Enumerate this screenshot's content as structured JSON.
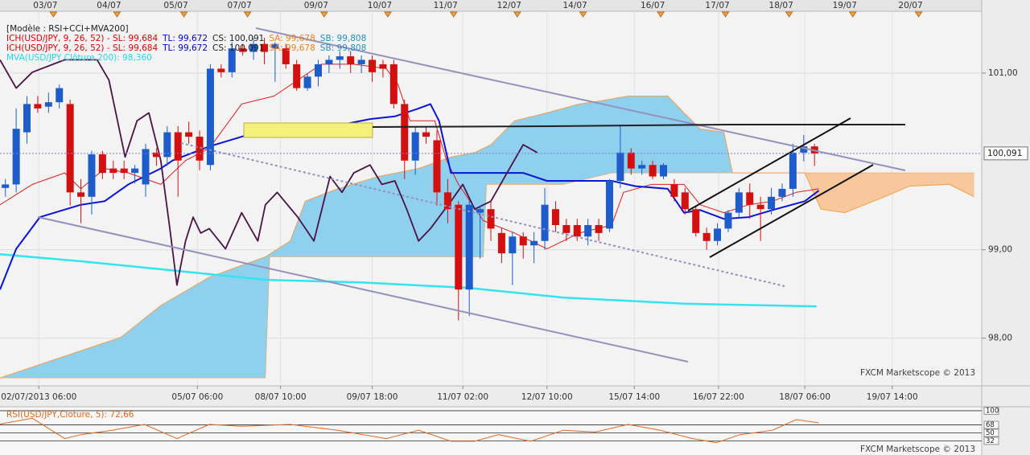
{
  "chart_data": {
    "type": "candlestick",
    "legend_lines": [
      [
        {
          "text": "[Modèle : RSI+CCI+MVA200]",
          "color": "#202020"
        }
      ],
      [
        {
          "text": "ICH(USD/JPY, 9, 26, 52) -  SL: 99,684",
          "color": "#e00000"
        },
        {
          "text": "TL: 99,672",
          "color": "#0000d0"
        },
        {
          "text": "CS: 100,091",
          "color": "#202020"
        },
        {
          "text": "SA: 99,678",
          "color": "#f08020"
        },
        {
          "text": "SB: 99,808",
          "color": "#2090c0"
        }
      ],
      [
        {
          "text": "ICH(USD/JPY, 9, 26, 52) -  SL: 99,684",
          "color": "#e00000"
        },
        {
          "text": "TL: 99,672",
          "color": "#0000d0"
        },
        {
          "text": "CS: 100,091",
          "color": "#202020"
        },
        {
          "text": "SA: 99,678",
          "color": "#f08020"
        },
        {
          "text": "SB: 99,808",
          "color": "#2090c0"
        }
      ],
      [
        {
          "text": "MVA(USD/JPY,Clôture,200): 98,360",
          "color": "#20d8e8"
        }
      ]
    ],
    "watermark": "FXCM Marketscope © 2013",
    "xlim": [
      -0.5,
      90.5
    ],
    "xticks_top": [
      {
        "value": 4.0,
        "label": "03/07"
      },
      {
        "value": 9.9,
        "label": "04/07"
      },
      {
        "value": 16.1,
        "label": "05/07"
      },
      {
        "value": 22.0,
        "label": "07/07"
      },
      {
        "value": 29.1,
        "label": "09/07"
      },
      {
        "value": 35.0,
        "label": "10/07"
      },
      {
        "value": 41.1,
        "label": "11/07"
      },
      {
        "value": 47.0,
        "label": "12/07"
      },
      {
        "value": 53.1,
        "label": "14/07"
      },
      {
        "value": 60.3,
        "label": "16/07"
      },
      {
        "value": 66.3,
        "label": "17/07"
      },
      {
        "value": 72.2,
        "label": "18/07"
      },
      {
        "value": 78.1,
        "label": "19/07"
      },
      {
        "value": 84.2,
        "label": "20/07"
      }
    ],
    "xticks": [
      {
        "value": 3.1,
        "label": "02/07/2013 06:00"
      },
      {
        "value": 17.8,
        "label": "05/07 06:00"
      },
      {
        "value": 25.5,
        "label": "08/07 10:00"
      },
      {
        "value": 34.0,
        "label": "09/07 18:00"
      },
      {
        "value": 42.4,
        "label": "11/07 02:00"
      },
      {
        "value": 50.2,
        "label": "12/07 10:00"
      },
      {
        "value": 58.3,
        "label": "15/07 14:00"
      },
      {
        "value": 66.1,
        "label": "16/07 22:00"
      },
      {
        "value": 74.1,
        "label": "18/07 06:00"
      },
      {
        "value": 82.2,
        "label": "19/07 14:00"
      }
    ],
    "ylim": [
      97.46,
      101.7
    ],
    "yticks": [
      {
        "value": 98,
        "label": "98,00"
      },
      {
        "value": 99,
        "label": "99,00"
      },
      {
        "value": 101,
        "label": "101,00"
      }
    ],
    "grid": true,
    "last_price": {
      "value": 100.091,
      "label": "100,091"
    },
    "up_color": "#1e5ccc",
    "down_color": "#d40f0f",
    "open": [
      99.7,
      99.74,
      100.33,
      100.65,
      100.62,
      100.67,
      100.65,
      99.65,
      99.6,
      100.08,
      99.92,
      99.92,
      99.87,
      99.74,
      100.1,
      100.05,
      100.33,
      100.33,
      100.28,
      99.96,
      101.05,
      101.01,
      101.28,
      101.24,
      101.33,
      101.28,
      101.28,
      101.1,
      100.83,
      100.96,
      101.1,
      101.15,
      101.19,
      101.1,
      101.15,
      101.1,
      101.1,
      100.65,
      100.01,
      100.33,
      100.24,
      99.65,
      99.51,
      98.55,
      99.42,
      99.46,
      99.19,
      98.96,
      99.15,
      99.05,
      99.1,
      99.46,
      99.28,
      99.28,
      99.15,
      99.28,
      99.24,
      99.78,
      100.1,
      99.92,
      99.96,
      99.83,
      99.74,
      99.65,
      99.46,
      99.19,
      99.1,
      99.24,
      99.42,
      99.65,
      99.51,
      99.46,
      99.6,
      99.69,
      100.1,
      100.17
    ],
    "high": [
      99.8,
      100.6,
      100.74,
      100.74,
      100.78,
      100.87,
      100.7,
      99.8,
      100.12,
      100.12,
      100.01,
      100.01,
      99.96,
      100.2,
      100.15,
      100.4,
      100.4,
      100.45,
      100.35,
      101.1,
      101.1,
      101.35,
      101.33,
      101.4,
      101.4,
      101.35,
      101.33,
      101.15,
      101.0,
      101.15,
      101.2,
      101.25,
      101.25,
      101.2,
      101.2,
      101.15,
      101.15,
      100.7,
      100.4,
      100.4,
      100.35,
      99.8,
      99.55,
      99.55,
      99.5,
      99.55,
      99.25,
      99.2,
      99.2,
      99.2,
      99.7,
      99.55,
      99.35,
      99.35,
      99.35,
      99.35,
      99.8,
      100.4,
      100.15,
      100.01,
      100.01,
      99.98,
      99.8,
      99.7,
      99.5,
      99.25,
      99.3,
      99.45,
      99.7,
      99.75,
      99.6,
      99.7,
      99.75,
      100.2,
      100.3,
      100.2
    ],
    "low": [
      99.6,
      99.65,
      100.2,
      100.55,
      100.55,
      100.6,
      99.5,
      99.3,
      99.4,
      99.8,
      99.8,
      99.8,
      99.75,
      99.6,
      99.95,
      99.95,
      99.6,
      100.2,
      99.9,
      99.9,
      100.95,
      100.95,
      101.2,
      101.15,
      101.1,
      100.9,
      101.05,
      100.8,
      100.8,
      100.85,
      101.0,
      101.05,
      101.0,
      101.0,
      100.9,
      100.95,
      100.6,
      99.8,
      99.85,
      100.2,
      99.5,
      99.3,
      98.2,
      98.25,
      98.9,
      99.1,
      98.85,
      98.6,
      98.9,
      98.85,
      99.0,
      99.2,
      99.1,
      99.1,
      99.05,
      99.1,
      99.2,
      99.7,
      99.85,
      99.85,
      99.8,
      99.8,
      99.55,
      99.4,
      99.15,
      99.0,
      99.05,
      99.2,
      99.35,
      99.35,
      99.1,
      99.4,
      99.55,
      99.6,
      100.0,
      99.95
    ],
    "close": [
      99.74,
      100.37,
      100.65,
      100.6,
      100.67,
      100.83,
      99.65,
      99.6,
      100.08,
      99.87,
      99.87,
      99.87,
      99.92,
      100.14,
      100.05,
      100.33,
      100.01,
      100.28,
      100.01,
      101.05,
      101.01,
      101.28,
      101.24,
      101.33,
      101.24,
      101.33,
      101.1,
      100.83,
      100.96,
      101.1,
      101.15,
      101.19,
      101.1,
      101.15,
      101.01,
      101.05,
      100.65,
      100.01,
      100.33,
      100.28,
      99.65,
      99.46,
      98.55,
      99.51,
      99.46,
      99.24,
      98.96,
      99.15,
      99.05,
      99.1,
      99.51,
      99.28,
      99.19,
      99.15,
      99.28,
      99.19,
      99.78,
      100.1,
      99.92,
      99.96,
      99.83,
      99.96,
      99.6,
      99.46,
      99.19,
      99.1,
      99.24,
      99.42,
      99.65,
      99.51,
      99.46,
      99.6,
      99.69,
      100.1,
      100.17,
      100.09
    ],
    "cloud": {
      "up_color": "#8fd0ef",
      "down_color": "#f8c79b",
      "edge_color": "#f0a050",
      "x_a": [
        -0.5,
        10.7,
        14.4,
        18.9,
        24.1,
        26.4,
        27.8,
        30.8,
        34.6,
        38.3,
        41.3,
        43.5,
        45.0,
        47.2,
        50.2,
        53.2,
        55.4,
        57.7,
        61.4,
        62.9,
        64.4,
        66.6,
        67.4,
        74.1,
        75.6,
        77.8,
        81.5,
        83.8,
        87.5,
        89.8
      ],
      "span_a": [
        97.55,
        98.01,
        98.37,
        98.69,
        98.92,
        99.1,
        99.55,
        99.69,
        99.83,
        99.92,
        100.05,
        100.1,
        100.19,
        100.46,
        100.55,
        100.65,
        100.69,
        100.74,
        100.74,
        100.55,
        100.37,
        100.33,
        99.87,
        99.87,
        99.46,
        99.42,
        99.6,
        99.72,
        99.74,
        99.6
      ],
      "x_b": [
        -0.5,
        24.1,
        24.5,
        44.3,
        44.6,
        51.7,
        56.2,
        89.8
      ],
      "span_b": [
        97.55,
        97.55,
        98.92,
        98.92,
        99.74,
        99.74,
        99.87,
        99.87
      ]
    },
    "overlays": [
      {
        "color": "#33e4f0",
        "width": 2.5,
        "x": [
          -0.5,
          7.0,
          14.4,
          24.1,
          33.1,
          42.8,
          51.7,
          62.9,
          75.2
        ],
        "values": [
          98.95,
          98.87,
          98.78,
          98.66,
          98.63,
          98.57,
          98.46,
          98.39,
          98.36
        ]
      },
      {
        "color": "#e41c1c",
        "width": 1,
        "x": [
          -0.5,
          2.5,
          5.5,
          7.0,
          9.2,
          11.4,
          14.4,
          16.7,
          18.9,
          21.9,
          24.9,
          27.1,
          29.3,
          32.3,
          35.3,
          36.4,
          37.5,
          39.8,
          40.9,
          42.0,
          44.3,
          47.2,
          50.2,
          53.2,
          56.2,
          57.3,
          59.9,
          62.9,
          64.4,
          66.6,
          68.9,
          71.1,
          73.3,
          75.4
        ],
        "values": [
          99.51,
          99.74,
          99.87,
          99.69,
          99.92,
          99.87,
          99.74,
          100.01,
          100.15,
          100.65,
          100.74,
          100.92,
          101.1,
          101.1,
          101.05,
          100.87,
          100.46,
          100.46,
          100.01,
          99.74,
          99.33,
          99.19,
          99.01,
          99.19,
          99.28,
          99.65,
          99.74,
          99.74,
          99.51,
          99.42,
          99.51,
          99.55,
          99.65,
          99.69
        ]
      },
      {
        "color": "#0a14d8",
        "width": 2,
        "x": [
          -0.5,
          1.0,
          3.2,
          7.0,
          9.2,
          11.4,
          14.4,
          15.5,
          17.4,
          18.9,
          21.9,
          24.9,
          30.1,
          33.8,
          36.1,
          38.3,
          39.4,
          40.2,
          41.3,
          48.0,
          50.2,
          56.2,
          58.4,
          61.4,
          62.9,
          64.4,
          66.6,
          68.9,
          71.1,
          74.1,
          75.4
        ],
        "values": [
          98.55,
          99.01,
          99.37,
          99.51,
          99.55,
          99.74,
          99.92,
          100.01,
          100.1,
          100.17,
          100.28,
          100.39,
          100.39,
          100.48,
          100.51,
          100.6,
          100.65,
          100.46,
          99.87,
          99.87,
          99.78,
          99.78,
          99.72,
          99.69,
          99.42,
          99.45,
          99.35,
          99.37,
          99.45,
          99.55,
          99.67
        ]
      },
      {
        "color": "#4a1245",
        "width": 1.8,
        "x": [
          -0.5,
          1.0,
          2.5,
          5.5,
          8.5,
          9.6,
          11.1,
          12.2,
          13.3,
          14.4,
          15.2,
          15.9,
          16.7,
          17.4,
          18.1,
          18.9,
          20.4,
          21.9,
          23.4,
          24.1,
          25.2,
          27.1,
          28.6,
          30.1,
          31.2,
          32.3,
          33.8,
          34.9,
          36.1,
          37.2,
          38.3,
          39.4,
          40.5,
          41.3,
          42.4,
          43.5,
          45.0,
          46.5,
          48.0,
          49.3
        ],
        "values": [
          101.15,
          100.83,
          101.01,
          101.15,
          101.15,
          100.92,
          100.05,
          100.46,
          100.55,
          100.01,
          99.28,
          98.6,
          99.1,
          99.37,
          99.19,
          99.24,
          99.01,
          99.42,
          99.1,
          99.51,
          99.65,
          99.37,
          99.1,
          99.83,
          99.65,
          99.87,
          99.96,
          99.74,
          99.78,
          99.46,
          99.1,
          99.24,
          99.42,
          99.55,
          99.74,
          99.46,
          99.55,
          99.87,
          100.19,
          100.1
        ]
      }
    ],
    "rsi_panel": {
      "label": "RSI(USD/JPY,Clôture, 5): 72,66",
      "color": "#e06a20",
      "ylim": [
        0,
        109
      ],
      "yticks": [
        100,
        68,
        50,
        32
      ],
      "x": [
        -0.5,
        2.5,
        5.5,
        7.0,
        9.9,
        12.9,
        15.9,
        18.9,
        21.9,
        26.4,
        30.8,
        35.3,
        38.3,
        41.3,
        43.5,
        45.7,
        48.7,
        51.7,
        54.7,
        57.7,
        60.7,
        63.7,
        65.9,
        68.1,
        71.1,
        73.3,
        75.4
      ],
      "values": [
        70,
        83,
        37,
        46,
        56,
        69,
        37,
        69,
        65,
        69,
        56,
        37,
        56,
        31,
        31,
        46,
        31,
        56,
        52,
        69,
        56,
        37,
        28,
        46,
        56,
        80,
        72.66
      ]
    }
  }
}
